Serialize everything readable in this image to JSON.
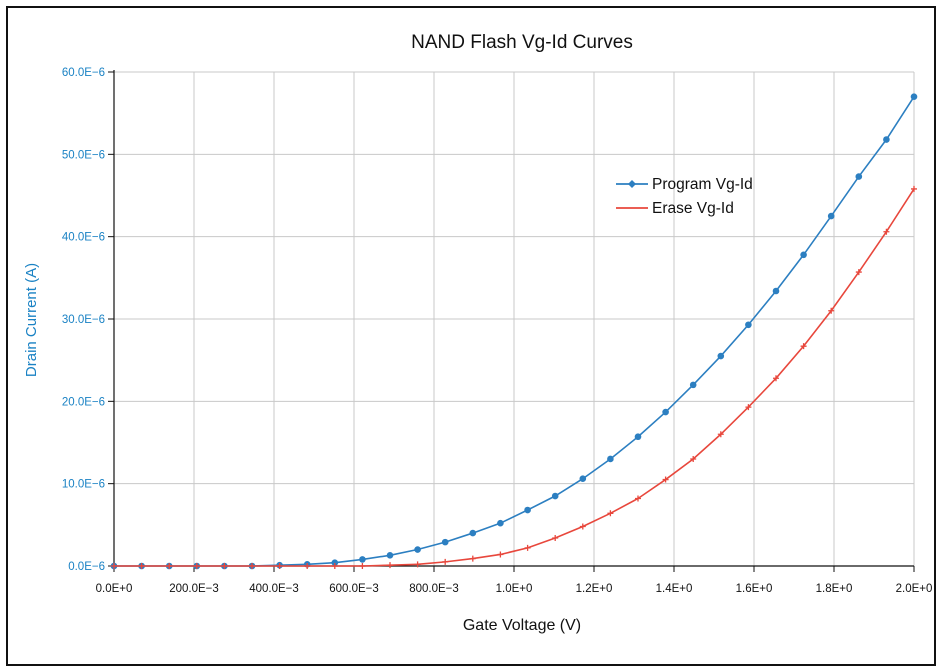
{
  "chart_data": {
    "type": "line",
    "title": "NAND Flash Vg-Id Curves",
    "xlabel": "Gate Voltage (V)",
    "ylabel": "Drain Current (A)",
    "xlim": [
      0,
      2.0
    ],
    "ylim": [
      0,
      6e-05
    ],
    "x_ticks": [
      0,
      0.2,
      0.4,
      0.6,
      0.8,
      1.0,
      1.2,
      1.4,
      1.6,
      1.8,
      2.0
    ],
    "x_tick_labels": [
      "0.0E+0",
      "200.0E−3",
      "400.0E−3",
      "600.0E−3",
      "800.0E−3",
      "1.0E+0",
      "1.2E+0",
      "1.4E+0",
      "1.6E+0",
      "1.8E+0",
      "2.0E+0"
    ],
    "y_ticks": [
      0,
      1e-05,
      2e-05,
      3e-05,
      4e-05,
      5e-05,
      6e-05
    ],
    "y_tick_labels": [
      "0.0E−6",
      "10.0E−6",
      "20.0E−6",
      "30.0E−6",
      "40.0E−6",
      "50.0E−6",
      "60.0E−6"
    ],
    "grid": true,
    "legend_position": "top-right",
    "colors": {
      "title": "#111111",
      "axis_label_y": "#1a82c4",
      "tick_y": "#1a82c4",
      "tick_x": "#111111",
      "grid": "#c8c8c8"
    },
    "series": [
      {
        "name": "Program Vg-Id",
        "color": "#2c7fc1",
        "marker": "circle",
        "x": [
          0,
          0.069,
          0.138,
          0.207,
          0.276,
          0.345,
          0.414,
          0.483,
          0.552,
          0.621,
          0.69,
          0.759,
          0.828,
          0.897,
          0.966,
          1.034,
          1.103,
          1.172,
          1.241,
          1.31,
          1.379,
          1.448,
          1.517,
          1.586,
          1.655,
          1.724,
          1.793,
          1.862,
          1.931,
          2.0
        ],
        "y": [
          0,
          0,
          0,
          0,
          0,
          0,
          1e-07,
          2e-07,
          4e-07,
          8e-07,
          1.3e-06,
          2e-06,
          2.9e-06,
          4e-06,
          5.2e-06,
          6.8e-06,
          8.5e-06,
          1.06e-05,
          1.3e-05,
          1.57e-05,
          1.87e-05,
          2.2e-05,
          2.55e-05,
          2.93e-05,
          3.34e-05,
          3.78e-05,
          4.25e-05,
          4.73e-05,
          5.18e-05,
          5.7e-05
        ]
      },
      {
        "name": "Erase Vg-Id",
        "color": "#e8473c",
        "marker": "plus",
        "x": [
          0,
          0.069,
          0.138,
          0.207,
          0.276,
          0.345,
          0.414,
          0.483,
          0.552,
          0.621,
          0.69,
          0.759,
          0.828,
          0.897,
          0.966,
          1.034,
          1.103,
          1.172,
          1.241,
          1.31,
          1.379,
          1.448,
          1.517,
          1.586,
          1.655,
          1.724,
          1.793,
          1.862,
          1.931,
          2.0
        ],
        "y": [
          0,
          0,
          0,
          0,
          0,
          0,
          0,
          0,
          0,
          0,
          1e-07,
          2e-07,
          5e-07,
          9e-07,
          1.4e-06,
          2.2e-06,
          3.4e-06,
          4.8e-06,
          6.4e-06,
          8.2e-06,
          1.05e-05,
          1.3e-05,
          1.6e-05,
          1.93e-05,
          2.28e-05,
          2.67e-05,
          3.1e-05,
          3.57e-05,
          4.06e-05,
          4.58e-05
        ]
      }
    ]
  }
}
